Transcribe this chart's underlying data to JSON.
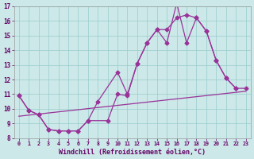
{
  "title": "",
  "xlabel": "Windchill (Refroidissement éolien,°C)",
  "ylabel": "",
  "bg_color": "#cce8e8",
  "line_color": "#993399",
  "grid_color": "#99cccc",
  "xlim": [
    -0.5,
    23.5
  ],
  "ylim": [
    8,
    17
  ],
  "xticks": [
    0,
    1,
    2,
    3,
    4,
    5,
    6,
    7,
    8,
    9,
    10,
    11,
    12,
    13,
    14,
    15,
    16,
    17,
    18,
    19,
    20,
    21,
    22,
    23
  ],
  "yticks": [
    8,
    9,
    10,
    11,
    12,
    13,
    14,
    15,
    16,
    17
  ],
  "series1_x": [
    0,
    1,
    2,
    3,
    4,
    5,
    6,
    7,
    8,
    10,
    11,
    12,
    13,
    14,
    15,
    16,
    17,
    18,
    19,
    20,
    21,
    22
  ],
  "series1_y": [
    10.9,
    9.9,
    9.6,
    8.6,
    8.5,
    8.5,
    8.5,
    9.2,
    10.5,
    12.5,
    11.0,
    13.1,
    14.5,
    15.4,
    14.5,
    17.2,
    14.5,
    16.2,
    15.3,
    13.3,
    12.1,
    11.4
  ],
  "series2_x": [
    0,
    1,
    2,
    3,
    4,
    5,
    6,
    7,
    9,
    10,
    11,
    12,
    13,
    14,
    15,
    16,
    17,
    18,
    19,
    20,
    21,
    22,
    23
  ],
  "series2_y": [
    10.9,
    9.9,
    9.6,
    8.6,
    8.5,
    8.5,
    8.5,
    9.2,
    9.2,
    11.0,
    10.9,
    13.1,
    14.5,
    15.4,
    15.4,
    16.2,
    16.4,
    16.2,
    15.3,
    13.3,
    12.1,
    11.4,
    11.4
  ],
  "series3_x": [
    0,
    23
  ],
  "series3_y": [
    9.5,
    11.2
  ]
}
